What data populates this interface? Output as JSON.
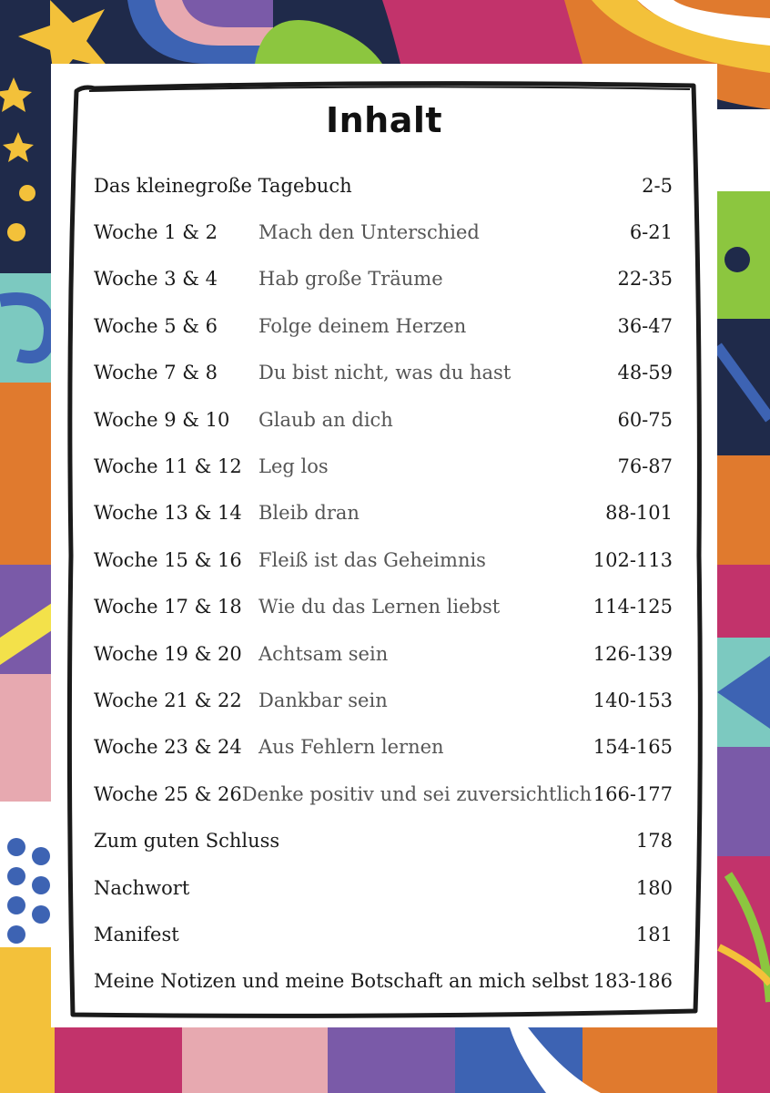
{
  "title": "Inhalt",
  "entries_top": [
    {
      "label": "Das kleinegroße Tagebuch",
      "pages": "2-5"
    }
  ],
  "weeks": [
    {
      "week": "Woche  1 & 2",
      "subtitle": "Mach den Unterschied",
      "pages": "6-21"
    },
    {
      "week": "Woche  3 & 4",
      "subtitle": "Hab große Träume",
      "pages": "22-35"
    },
    {
      "week": "Woche  5 & 6",
      "subtitle": "Folge deinem Herzen",
      "pages": "36-47"
    },
    {
      "week": "Woche  7 & 8",
      "subtitle": "Du bist nicht, was du hast",
      "pages": "48-59"
    },
    {
      "week": "Woche  9 & 10",
      "subtitle": "Glaub an dich",
      "pages": "60-75"
    },
    {
      "week": "Woche  11 & 12",
      "subtitle": "Leg los",
      "pages": "76-87"
    },
    {
      "week": "Woche  13 & 14",
      "subtitle": "Bleib dran",
      "pages": "88-101"
    },
    {
      "week": "Woche  15 & 16",
      "subtitle": "Fleiß ist das Geheimnis",
      "pages": "102-113"
    },
    {
      "week": "Woche  17 & 18",
      "subtitle": "Wie du das Lernen liebst",
      "pages": "114-125"
    },
    {
      "week": "Woche  19 & 20",
      "subtitle": "Achtsam sein",
      "pages": "126-139"
    },
    {
      "week": "Woche  21 & 22",
      "subtitle": "Dankbar sein",
      "pages": "140-153"
    },
    {
      "week": "Woche  23 & 24",
      "subtitle": "Aus Fehlern lernen",
      "pages": "154-165"
    },
    {
      "week": "Woche  25 & 26",
      "subtitle": "Denke positiv und sei zuversichtlich",
      "pages": "166-177"
    }
  ],
  "entries_bottom": [
    {
      "label": "Zum guten Schluss",
      "pages": "178"
    },
    {
      "label": "Nachwort",
      "pages": "180"
    },
    {
      "label": "Manifest",
      "pages": "181"
    },
    {
      "label": "Meine Notizen und meine Botschaft an mich selbst",
      "pages": "183-186"
    }
  ],
  "colors": {
    "navy": "#1f2a4a",
    "orange": "#e07a2e",
    "yellow": "#f3c13a",
    "magenta": "#c2336b",
    "green": "#8cc63f",
    "blue": "#3d63b3",
    "teal": "#7cc9c0",
    "purple": "#7a5aa8",
    "pink": "#e7a9b0",
    "red": "#d9463c"
  }
}
